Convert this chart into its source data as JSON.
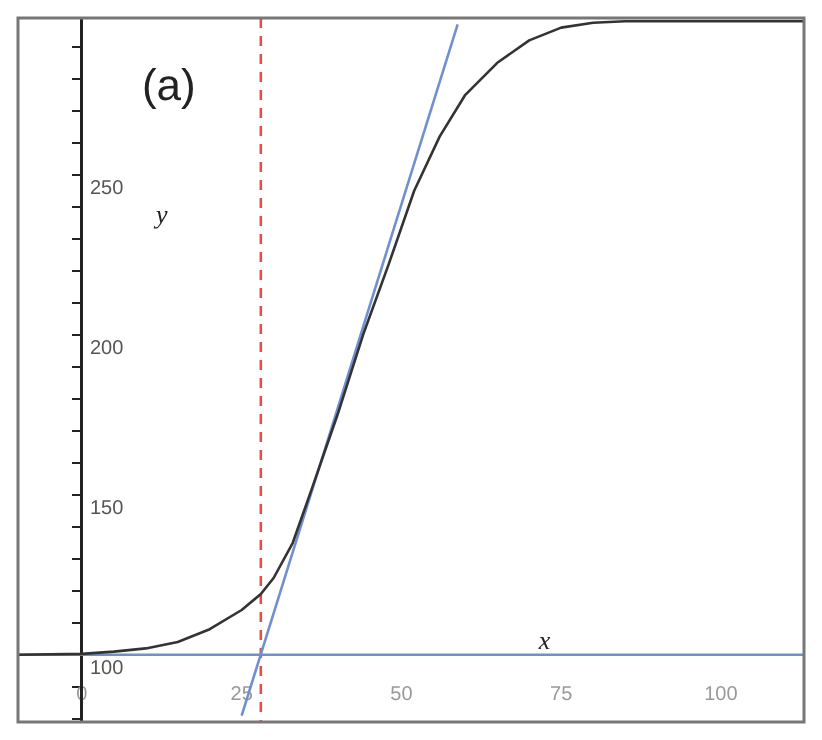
{
  "chart_data": {
    "type": "line",
    "title": "(a)",
    "xlabel": "x",
    "ylabel": "y",
    "xlim": [
      -10,
      113
    ],
    "ylim": [
      79,
      299
    ],
    "xticks": [
      0,
      25,
      50,
      75,
      100
    ],
    "yticks": [
      {
        "value": 80,
        "label": null
      },
      {
        "value": 90,
        "label": null
      },
      100,
      {
        "value": 110,
        "label": null
      },
      {
        "value": 120,
        "label": null
      },
      {
        "value": 130,
        "label": null
      },
      {
        "value": 140,
        "label": null
      },
      150,
      {
        "value": 160,
        "label": null
      },
      {
        "value": 170,
        "label": null
      },
      {
        "value": 180,
        "label": null
      },
      {
        "value": 190,
        "label": null
      },
      200,
      {
        "value": 210,
        "label": null
      },
      {
        "value": 220,
        "label": null
      },
      {
        "value": 230,
        "label": null
      },
      {
        "value": 240,
        "label": null
      },
      250,
      {
        "value": 260,
        "label": null
      },
      {
        "value": 270,
        "label": null
      },
      {
        "value": 280,
        "label": null
      },
      {
        "value": 290,
        "label": null
      }
    ],
    "grid": false,
    "legend": false,
    "marker": "none",
    "series": [
      {
        "color": "#333333",
        "x": [
          -10,
          0,
          5,
          10,
          15,
          20,
          25,
          28,
          30,
          33,
          36,
          40,
          44,
          48,
          52,
          56,
          60,
          65,
          70,
          75,
          80,
          85,
          90,
          100,
          113
        ],
        "values": [
          100,
          100.3,
          101,
          102,
          104,
          108,
          114,
          119,
          124,
          135,
          152,
          175,
          200,
          222,
          245,
          262,
          275,
          285,
          292,
          296,
          297.5,
          298,
          298,
          298,
          298
        ]
      },
      {
        "color": "#6f8fcf",
        "x": [
          25,
          58.8
        ],
        "values": [
          81,
          297
        ]
      }
    ],
    "ref_lines": [
      {
        "axis": "y",
        "value": 100,
        "color": "#6f8fcf"
      },
      {
        "axis": "x",
        "value": 28,
        "color": "#e0504a",
        "line_style": "dashed"
      }
    ]
  }
}
